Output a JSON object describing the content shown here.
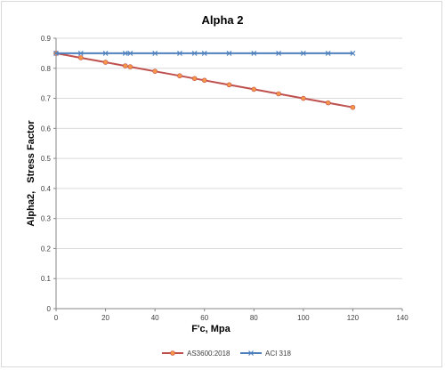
{
  "chart_data": {
    "type": "line",
    "title": "Alpha 2",
    "xlabel": "F'c, Mpa",
    "ylabel": "Alpha2,   Stress Factor",
    "xlim": [
      0,
      140
    ],
    "ylim": [
      0,
      0.9
    ],
    "x_ticks": [
      "0",
      "20",
      "40",
      "60",
      "80",
      "100",
      "120",
      "140"
    ],
    "y_ticks": [
      "0",
      "0.1",
      "0.2",
      "0.3",
      "0.4",
      "0.5",
      "0.6",
      "0.7",
      "0.8",
      "0.9"
    ],
    "grid": true,
    "legend_position": "bottom",
    "series": [
      {
        "name": "AS3600:2018",
        "color": "#c0504d",
        "marker_color": "#f79646",
        "marker": "circle",
        "x": [
          0,
          10,
          20,
          28,
          30,
          40,
          50,
          56,
          60,
          70,
          80,
          90,
          100,
          110,
          120
        ],
        "y": [
          0.85,
          0.835,
          0.82,
          0.808,
          0.805,
          0.79,
          0.775,
          0.766,
          0.76,
          0.745,
          0.73,
          0.715,
          0.7,
          0.685,
          0.67
        ]
      },
      {
        "name": "ACI 318",
        "color": "#4f81bd",
        "marker_color": "#4f81bd",
        "marker": "cross",
        "x": [
          0,
          10,
          20,
          28,
          30,
          40,
          50,
          56,
          60,
          70,
          80,
          90,
          100,
          110,
          120
        ],
        "y": [
          0.85,
          0.85,
          0.85,
          0.85,
          0.85,
          0.85,
          0.85,
          0.85,
          0.85,
          0.85,
          0.85,
          0.85,
          0.85,
          0.85,
          0.85
        ]
      }
    ]
  }
}
